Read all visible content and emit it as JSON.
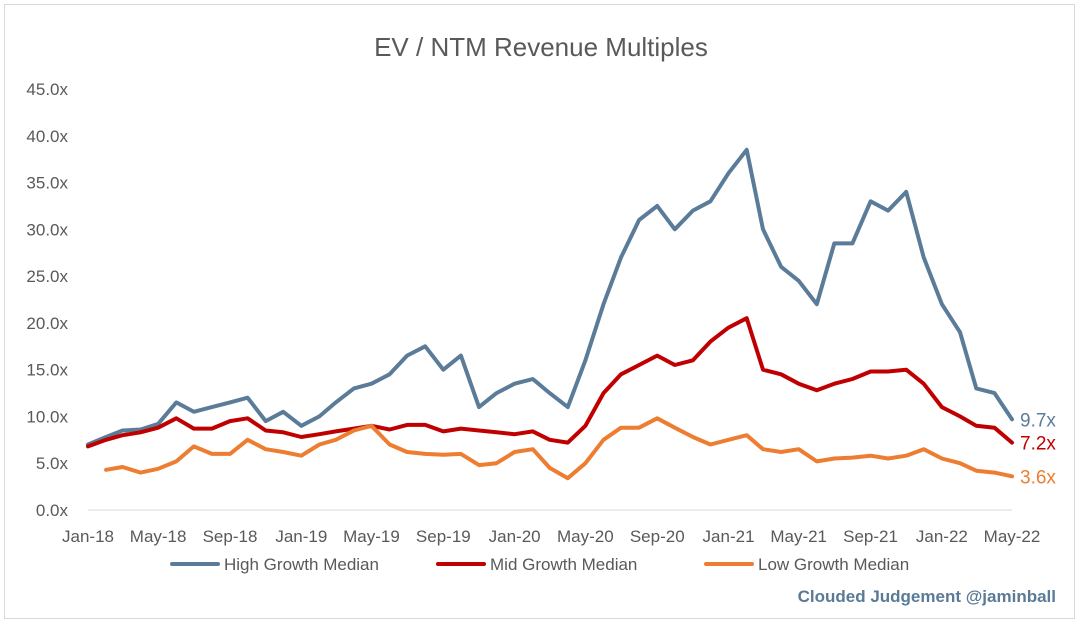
{
  "chart_data": {
    "type": "line",
    "title": "EV / NTM Revenue Multiples",
    "xlabel": "",
    "ylabel": "",
    "y_ticks": [
      "0.0x",
      "5.0x",
      "10.0x",
      "15.0x",
      "20.0x",
      "25.0x",
      "30.0x",
      "35.0x",
      "40.0x",
      "45.0x"
    ],
    "ylim": [
      0,
      45
    ],
    "x_ticks": [
      "Jan-18",
      "May-18",
      "Sep-18",
      "Jan-19",
      "May-19",
      "Sep-19",
      "Jan-20",
      "May-20",
      "Sep-20",
      "Jan-21",
      "May-21",
      "Sep-21",
      "Jan-22",
      "May-22"
    ],
    "x_tick_dates": [
      "2018-01-01",
      "2018-05-01",
      "2018-09-01",
      "2019-01-01",
      "2019-05-01",
      "2019-09-01",
      "2020-01-01",
      "2020-05-01",
      "2020-09-01",
      "2021-01-01",
      "2021-05-01",
      "2021-09-01",
      "2022-01-01",
      "2022-05-01"
    ],
    "xlim": [
      "2018-01-01",
      "2022-05-01"
    ],
    "grid": false,
    "legend_position": "bottom",
    "series": [
      {
        "name": "High Growth Median",
        "color": "#5b7c99",
        "end_label": "9.7x",
        "points": [
          [
            "2018-01-01",
            7.0
          ],
          [
            "2018-02-01",
            7.8
          ],
          [
            "2018-03-01",
            8.5
          ],
          [
            "2018-04-01",
            8.6
          ],
          [
            "2018-05-01",
            9.2
          ],
          [
            "2018-06-01",
            11.5
          ],
          [
            "2018-07-01",
            10.5
          ],
          [
            "2018-08-01",
            11.0
          ],
          [
            "2018-09-01",
            11.5
          ],
          [
            "2018-10-01",
            12.0
          ],
          [
            "2018-11-01",
            9.5
          ],
          [
            "2018-12-01",
            10.5
          ],
          [
            "2019-01-01",
            9.0
          ],
          [
            "2019-02-01",
            10.0
          ],
          [
            "2019-03-01",
            11.5
          ],
          [
            "2019-04-01",
            13.0
          ],
          [
            "2019-05-01",
            13.5
          ],
          [
            "2019-06-01",
            14.5
          ],
          [
            "2019-07-01",
            16.5
          ],
          [
            "2019-08-01",
            17.5
          ],
          [
            "2019-09-01",
            15.0
          ],
          [
            "2019-10-01",
            16.5
          ],
          [
            "2019-11-01",
            11.0
          ],
          [
            "2019-12-01",
            12.5
          ],
          [
            "2020-01-01",
            13.5
          ],
          [
            "2020-02-01",
            14.0
          ],
          [
            "2020-03-01",
            12.5
          ],
          [
            "2020-04-01",
            11.0
          ],
          [
            "2020-05-01",
            16.0
          ],
          [
            "2020-06-01",
            22.0
          ],
          [
            "2020-07-01",
            27.0
          ],
          [
            "2020-08-01",
            31.0
          ],
          [
            "2020-09-01",
            32.5
          ],
          [
            "2020-10-01",
            30.0
          ],
          [
            "2020-11-01",
            32.0
          ],
          [
            "2020-12-01",
            33.0
          ],
          [
            "2021-01-01",
            36.0
          ],
          [
            "2021-02-01",
            38.5
          ],
          [
            "2021-03-01",
            30.0
          ],
          [
            "2021-04-01",
            26.0
          ],
          [
            "2021-05-01",
            24.5
          ],
          [
            "2021-06-01",
            22.0
          ],
          [
            "2021-07-01",
            28.5
          ],
          [
            "2021-08-01",
            28.5
          ],
          [
            "2021-09-01",
            33.0
          ],
          [
            "2021-10-01",
            32.0
          ],
          [
            "2021-11-01",
            34.0
          ],
          [
            "2021-12-01",
            27.0
          ],
          [
            "2022-01-01",
            22.0
          ],
          [
            "2022-02-01",
            19.0
          ],
          [
            "2022-03-01",
            13.0
          ],
          [
            "2022-04-01",
            12.5
          ],
          [
            "2022-05-01",
            9.7
          ]
        ]
      },
      {
        "name": "Mid Growth Median",
        "color": "#c00000",
        "end_label": "7.2x",
        "points": [
          [
            "2018-01-01",
            6.8
          ],
          [
            "2018-02-01",
            7.5
          ],
          [
            "2018-03-01",
            8.0
          ],
          [
            "2018-04-01",
            8.3
          ],
          [
            "2018-05-01",
            8.8
          ],
          [
            "2018-06-01",
            9.8
          ],
          [
            "2018-07-01",
            8.7
          ],
          [
            "2018-08-01",
            8.7
          ],
          [
            "2018-09-01",
            9.5
          ],
          [
            "2018-10-01",
            9.8
          ],
          [
            "2018-11-01",
            8.5
          ],
          [
            "2018-12-01",
            8.3
          ],
          [
            "2019-01-01",
            7.8
          ],
          [
            "2019-02-01",
            8.1
          ],
          [
            "2019-03-01",
            8.4
          ],
          [
            "2019-04-01",
            8.7
          ],
          [
            "2019-05-01",
            9.0
          ],
          [
            "2019-06-01",
            8.6
          ],
          [
            "2019-07-01",
            9.1
          ],
          [
            "2019-08-01",
            9.1
          ],
          [
            "2019-09-01",
            8.4
          ],
          [
            "2019-10-01",
            8.7
          ],
          [
            "2019-11-01",
            8.5
          ],
          [
            "2019-12-01",
            8.3
          ],
          [
            "2020-01-01",
            8.1
          ],
          [
            "2020-02-01",
            8.4
          ],
          [
            "2020-03-01",
            7.5
          ],
          [
            "2020-04-01",
            7.2
          ],
          [
            "2020-05-01",
            9.0
          ],
          [
            "2020-06-01",
            12.5
          ],
          [
            "2020-07-01",
            14.5
          ],
          [
            "2020-08-01",
            15.5
          ],
          [
            "2020-09-01",
            16.5
          ],
          [
            "2020-10-01",
            15.5
          ],
          [
            "2020-11-01",
            16.0
          ],
          [
            "2020-12-01",
            18.0
          ],
          [
            "2021-01-01",
            19.5
          ],
          [
            "2021-02-01",
            20.5
          ],
          [
            "2021-03-01",
            15.0
          ],
          [
            "2021-04-01",
            14.5
          ],
          [
            "2021-05-01",
            13.5
          ],
          [
            "2021-06-01",
            12.8
          ],
          [
            "2021-07-01",
            13.5
          ],
          [
            "2021-08-01",
            14.0
          ],
          [
            "2021-09-01",
            14.8
          ],
          [
            "2021-10-01",
            14.8
          ],
          [
            "2021-11-01",
            15.0
          ],
          [
            "2021-12-01",
            13.5
          ],
          [
            "2022-01-01",
            11.0
          ],
          [
            "2022-02-01",
            10.0
          ],
          [
            "2022-03-01",
            9.0
          ],
          [
            "2022-04-01",
            8.8
          ],
          [
            "2022-05-01",
            7.2
          ]
        ]
      },
      {
        "name": "Low Growth Median",
        "color": "#ed7d31",
        "end_label": "3.6x",
        "points": [
          [
            "2018-02-01",
            4.3
          ],
          [
            "2018-03-01",
            4.6
          ],
          [
            "2018-04-01",
            4.0
          ],
          [
            "2018-05-01",
            4.4
          ],
          [
            "2018-06-01",
            5.2
          ],
          [
            "2018-07-01",
            6.8
          ],
          [
            "2018-08-01",
            6.0
          ],
          [
            "2018-09-01",
            6.0
          ],
          [
            "2018-10-01",
            7.5
          ],
          [
            "2018-11-01",
            6.5
          ],
          [
            "2018-12-01",
            6.2
          ],
          [
            "2019-01-01",
            5.8
          ],
          [
            "2019-02-01",
            7.0
          ],
          [
            "2019-03-01",
            7.5
          ],
          [
            "2019-04-01",
            8.5
          ],
          [
            "2019-05-01",
            9.0
          ],
          [
            "2019-06-01",
            7.0
          ],
          [
            "2019-07-01",
            6.2
          ],
          [
            "2019-08-01",
            6.0
          ],
          [
            "2019-09-01",
            5.9
          ],
          [
            "2019-10-01",
            6.0
          ],
          [
            "2019-11-01",
            4.8
          ],
          [
            "2019-12-01",
            5.0
          ],
          [
            "2020-01-01",
            6.2
          ],
          [
            "2020-02-01",
            6.5
          ],
          [
            "2020-03-01",
            4.5
          ],
          [
            "2020-04-01",
            3.4
          ],
          [
            "2020-05-01",
            5.0
          ],
          [
            "2020-06-01",
            7.5
          ],
          [
            "2020-07-01",
            8.8
          ],
          [
            "2020-08-01",
            8.8
          ],
          [
            "2020-09-01",
            9.8
          ],
          [
            "2020-10-01",
            8.8
          ],
          [
            "2020-11-01",
            7.8
          ],
          [
            "2020-12-01",
            7.0
          ],
          [
            "2021-01-01",
            7.5
          ],
          [
            "2021-02-01",
            8.0
          ],
          [
            "2021-03-01",
            6.5
          ],
          [
            "2021-04-01",
            6.2
          ],
          [
            "2021-05-01",
            6.5
          ],
          [
            "2021-06-01",
            5.2
          ],
          [
            "2021-07-01",
            5.5
          ],
          [
            "2021-08-01",
            5.6
          ],
          [
            "2021-09-01",
            5.8
          ],
          [
            "2021-10-01",
            5.5
          ],
          [
            "2021-11-01",
            5.8
          ],
          [
            "2021-12-01",
            6.5
          ],
          [
            "2022-01-01",
            5.5
          ],
          [
            "2022-02-01",
            5.0
          ],
          [
            "2022-03-01",
            4.2
          ],
          [
            "2022-04-01",
            4.0
          ],
          [
            "2022-05-01",
            3.6
          ]
        ]
      }
    ]
  },
  "legend": {
    "items": [
      {
        "label": "High Growth Median",
        "color": "#5b7c99"
      },
      {
        "label": "Mid Growth Median",
        "color": "#c00000"
      },
      {
        "label": "Low Growth Median",
        "color": "#ed7d31"
      }
    ]
  },
  "credit": "Clouded Judgement @jaminball"
}
